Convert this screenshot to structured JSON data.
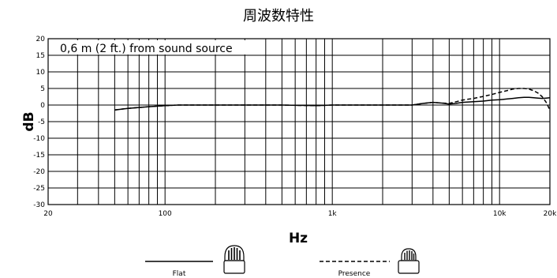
{
  "chart_data": {
    "type": "line",
    "title": "周波数特性",
    "annotation": "0,6 m (2 ft.) from sound source",
    "xlabel": "Hz",
    "ylabel": "dB",
    "xscale": "log",
    "xlim": [
      20,
      20000
    ],
    "ylim": [
      -30,
      20
    ],
    "grid": true,
    "x_tick_labels": [
      "20",
      "100",
      "1k",
      "10k",
      "20k"
    ],
    "x_tick_values": [
      20,
      100,
      1000,
      10000,
      20000
    ],
    "y_tick_values": [
      20,
      15,
      10,
      5,
      0,
      -5,
      -10,
      -15,
      -20,
      -25,
      -30
    ],
    "legend_position": "bottom-center",
    "series": [
      {
        "name": "Flat",
        "style": "solid",
        "x": [
          50,
          60,
          80,
          100,
          120,
          150,
          200,
          300,
          500,
          800,
          1000,
          2000,
          3000,
          3500,
          4000,
          4500,
          5000,
          5500,
          6000,
          7000,
          8000,
          9000,
          10000,
          11000,
          12000,
          13000,
          14000,
          15000,
          16000,
          17000,
          18000,
          19000,
          20000
        ],
        "y": [
          -1.5,
          -1.0,
          -0.5,
          -0.2,
          0.0,
          0.0,
          0.0,
          0.0,
          0.0,
          -0.2,
          0.0,
          0.0,
          0.0,
          0.5,
          0.8,
          0.6,
          0.3,
          0.5,
          0.8,
          1.0,
          1.2,
          1.5,
          1.6,
          1.8,
          2.0,
          2.2,
          2.3,
          2.3,
          2.2,
          2.1,
          2.0,
          2.1,
          2.2
        ]
      },
      {
        "name": "Presence",
        "style": "dashed",
        "x": [
          50,
          60,
          80,
          100,
          120,
          150,
          200,
          300,
          500,
          800,
          1000,
          2000,
          3000,
          3500,
          4000,
          4500,
          5000,
          5500,
          6000,
          7000,
          8000,
          9000,
          10000,
          11000,
          12000,
          13000,
          14000,
          15000,
          16000,
          17000,
          18000,
          19000,
          20000
        ],
        "y": [
          -1.5,
          -1.0,
          -0.5,
          -0.2,
          0.0,
          0.0,
          0.0,
          0.0,
          0.0,
          -0.2,
          0.0,
          0.0,
          0.0,
          0.5,
          0.8,
          0.6,
          0.5,
          1.0,
          1.5,
          2.0,
          2.6,
          3.2,
          3.8,
          4.3,
          4.8,
          5.0,
          5.0,
          4.8,
          4.3,
          3.6,
          2.5,
          0.8,
          -1.5
        ]
      }
    ]
  }
}
